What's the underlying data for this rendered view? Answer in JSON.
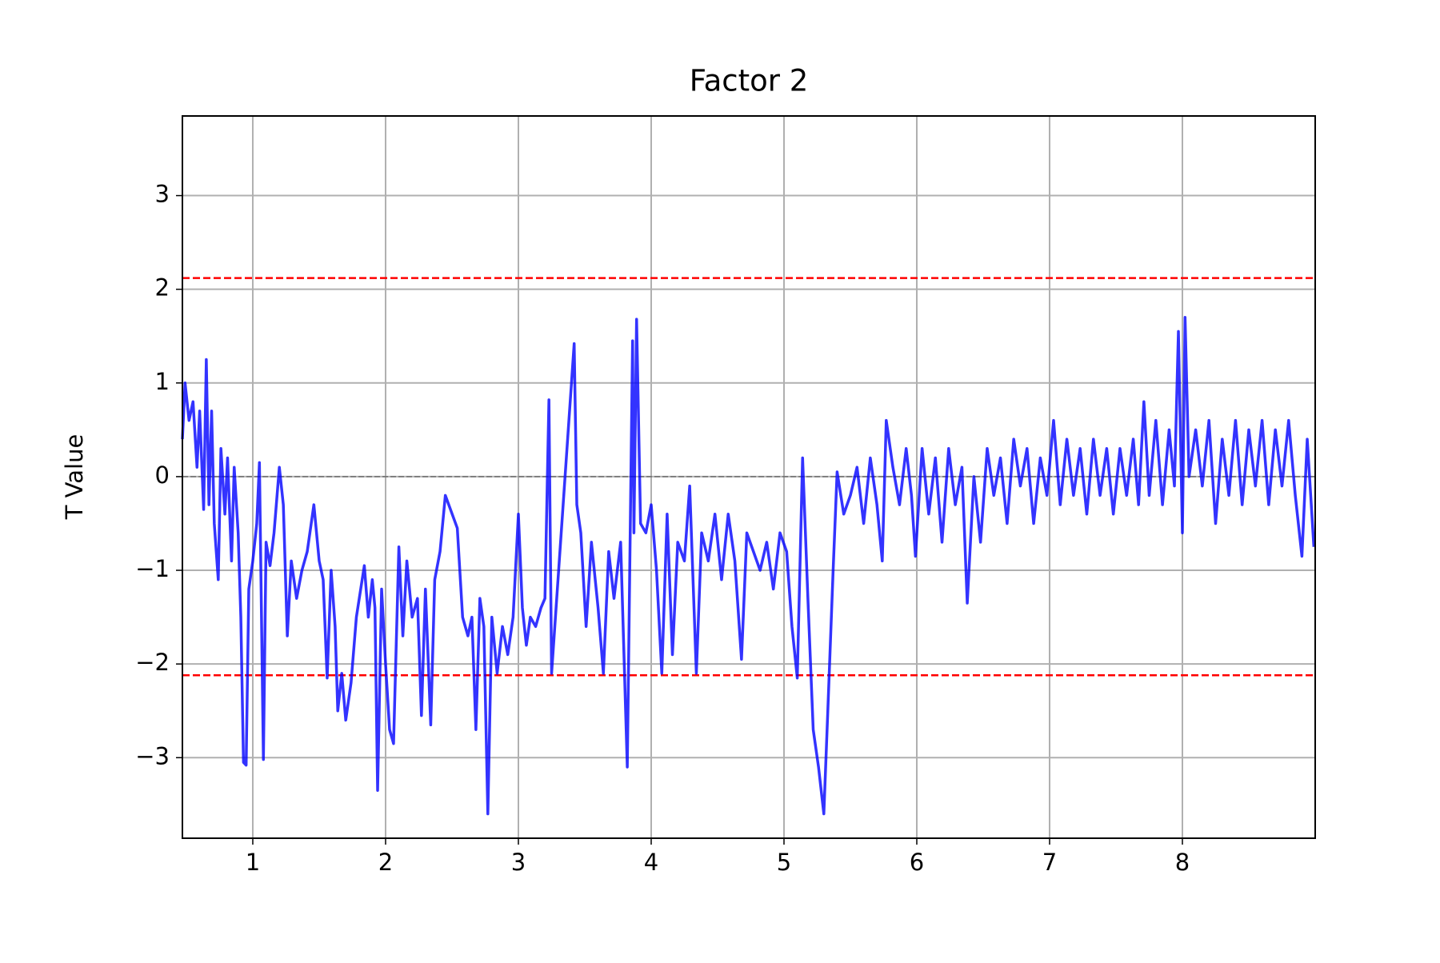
{
  "chart_data": {
    "type": "line",
    "title": "Factor 2",
    "ylabel": "T Value",
    "xlim": [
      0.47,
      9.0
    ],
    "ylim": [
      -3.86,
      3.85
    ],
    "xticks": [
      1,
      2,
      3,
      4,
      5,
      6,
      7,
      8
    ],
    "yticks": [
      {
        "value": -3,
        "label": "−3"
      },
      {
        "value": -2,
        "label": "−2"
      },
      {
        "value": -1,
        "label": "−1"
      },
      0,
      1,
      2,
      3
    ],
    "grid": true,
    "hlines": [
      {
        "value": 2.12,
        "color": "#ff0000",
        "style": "dashed"
      },
      {
        "value": -2.12,
        "color": "#ff0000",
        "style": "dashed"
      },
      {
        "value": 0,
        "color": "#555555",
        "style": "dashed"
      }
    ],
    "x": [
      0.47,
      0.49,
      0.52,
      0.55,
      0.58,
      0.6,
      0.63,
      0.65,
      0.67,
      0.69,
      0.71,
      0.74,
      0.76,
      0.79,
      0.81,
      0.84,
      0.86,
      0.89,
      0.91,
      0.93,
      0.95,
      0.97,
      1.0,
      1.03,
      1.05,
      1.08,
      1.1,
      1.13,
      1.16,
      1.2,
      1.23,
      1.26,
      1.29,
      1.33,
      1.37,
      1.41,
      1.46,
      1.5,
      1.53,
      1.56,
      1.59,
      1.62,
      1.64,
      1.67,
      1.7,
      1.74,
      1.78,
      1.84,
      1.87,
      1.9,
      1.92,
      1.94,
      1.97,
      2.0,
      2.03,
      2.06,
      2.1,
      2.13,
      2.16,
      2.2,
      2.24,
      2.27,
      2.3,
      2.34,
      2.37,
      2.41,
      2.45,
      2.54,
      2.58,
      2.62,
      2.65,
      2.68,
      2.71,
      2.74,
      2.77,
      2.8,
      2.84,
      2.88,
      2.92,
      2.96,
      3.0,
      3.03,
      3.06,
      3.09,
      3.13,
      3.17,
      3.2,
      3.23,
      3.25,
      3.42,
      3.44,
      3.47,
      3.51,
      3.55,
      3.6,
      3.64,
      3.68,
      3.72,
      3.77,
      3.82,
      3.86,
      3.87,
      3.89,
      3.92,
      3.96,
      4.0,
      4.04,
      4.08,
      4.12,
      4.16,
      4.2,
      4.25,
      4.29,
      4.34,
      4.38,
      4.43,
      4.48,
      4.53,
      4.58,
      4.63,
      4.68,
      4.72,
      4.77,
      4.82,
      4.87,
      4.92,
      4.97,
      5.02,
      5.06,
      5.1,
      5.14,
      5.18,
      5.22,
      5.26,
      5.3,
      5.33,
      5.37,
      5.4,
      5.45,
      5.5,
      5.55,
      5.6,
      5.65,
      5.7,
      5.74,
      5.77,
      5.82,
      5.87,
      5.92,
      5.96,
      5.99,
      6.04,
      6.09,
      6.14,
      6.19,
      6.24,
      6.29,
      6.34,
      6.38,
      6.43,
      6.48,
      6.53,
      6.58,
      6.63,
      6.68,
      6.73,
      6.78,
      6.83,
      6.88,
      6.93,
      6.98,
      7.03,
      7.08,
      7.13,
      7.18,
      7.23,
      7.28,
      7.33,
      7.38,
      7.43,
      7.48,
      7.53,
      7.58,
      7.63,
      7.67,
      7.71,
      7.75,
      7.8,
      7.85,
      7.9,
      7.94,
      7.97,
      8.0,
      8.02,
      8.05,
      8.1,
      8.15,
      8.2,
      8.25,
      8.3,
      8.35,
      8.4,
      8.45,
      8.5,
      8.55,
      8.6,
      8.65,
      8.7,
      8.75,
      8.8,
      8.85,
      8.9,
      8.94,
      8.99
    ],
    "series": [
      {
        "color": "#0000ff",
        "alpha": 0.8,
        "values": [
          0.4,
          1.0,
          0.6,
          0.8,
          0.1,
          0.7,
          -0.35,
          1.25,
          -0.3,
          0.7,
          -0.5,
          -1.1,
          0.3,
          -0.4,
          0.2,
          -0.9,
          0.1,
          -0.6,
          -1.5,
          -3.05,
          -3.08,
          -1.2,
          -0.9,
          -0.5,
          0.15,
          -3.02,
          -0.7,
          -0.95,
          -0.6,
          0.1,
          -0.3,
          -1.7,
          -0.9,
          -1.3,
          -1.0,
          -0.8,
          -0.3,
          -0.9,
          -1.1,
          -2.15,
          -1.0,
          -1.6,
          -2.5,
          -2.1,
          -2.6,
          -2.2,
          -1.5,
          -0.95,
          -1.5,
          -1.1,
          -1.4,
          -3.35,
          -1.2,
          -2.0,
          -2.7,
          -2.85,
          -0.75,
          -1.7,
          -0.9,
          -1.5,
          -1.3,
          -2.55,
          -1.2,
          -2.65,
          -1.1,
          -0.8,
          -0.2,
          -0.55,
          -1.5,
          -1.7,
          -1.5,
          -2.7,
          -1.3,
          -1.6,
          -3.6,
          -1.5,
          -2.1,
          -1.6,
          -1.9,
          -1.5,
          -0.4,
          -1.4,
          -1.8,
          -1.5,
          -1.6,
          -1.4,
          -1.3,
          0.82,
          -2.1,
          1.42,
          -0.3,
          -0.6,
          -1.6,
          -0.7,
          -1.4,
          -2.1,
          -0.8,
          -1.3,
          -0.7,
          -3.1,
          1.45,
          -0.6,
          1.68,
          -0.5,
          -0.6,
          -0.3,
          -1.0,
          -2.1,
          -0.4,
          -1.9,
          -0.7,
          -0.9,
          -0.1,
          -2.1,
          -0.6,
          -0.9,
          -0.4,
          -1.1,
          -0.4,
          -0.9,
          -1.95,
          -0.6,
          -0.8,
          -1.0,
          -0.7,
          -1.2,
          -0.6,
          -0.8,
          -1.6,
          -2.15,
          0.2,
          -1.3,
          -2.7,
          -3.1,
          -3.6,
          -2.5,
          -1.0,
          0.05,
          -0.4,
          -0.2,
          0.1,
          -0.5,
          0.2,
          -0.3,
          -0.9,
          0.6,
          0.1,
          -0.3,
          0.3,
          -0.2,
          -0.85,
          0.3,
          -0.4,
          0.2,
          -0.7,
          0.3,
          -0.3,
          0.1,
          -1.35,
          0.0,
          -0.7,
          0.3,
          -0.2,
          0.2,
          -0.5,
          0.4,
          -0.1,
          0.3,
          -0.5,
          0.2,
          -0.2,
          0.6,
          -0.3,
          0.4,
          -0.2,
          0.3,
          -0.4,
          0.4,
          -0.2,
          0.3,
          -0.4,
          0.3,
          -0.2,
          0.4,
          -0.3,
          0.8,
          -0.2,
          0.6,
          -0.3,
          0.5,
          -0.1,
          1.55,
          -0.6,
          1.7,
          0.0,
          0.5,
          -0.1,
          0.6,
          -0.5,
          0.4,
          -0.2,
          0.6,
          -0.3,
          0.5,
          -0.1,
          0.6,
          -0.3,
          0.5,
          -0.1,
          0.6,
          -0.2,
          -0.85,
          0.4,
          -0.75
        ]
      }
    ]
  }
}
